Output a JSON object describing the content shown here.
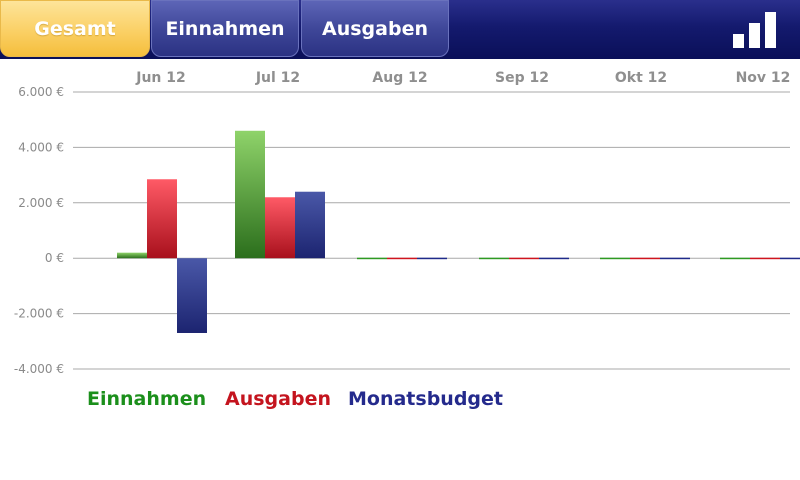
{
  "tabs": [
    {
      "label": "Gesamt",
      "active": true
    },
    {
      "label": "Einnahmen",
      "active": false
    },
    {
      "label": "Ausgaben",
      "active": false
    }
  ],
  "icons": {
    "chart_toggle": "bar-chart-icon"
  },
  "colors": {
    "einnahmen": "#2e9a22",
    "ausgaben": "#d0141e",
    "monatsbudget": "#1f2a8a",
    "active_tab": "#f9c94e",
    "header": "#141a6e"
  },
  "legend": [
    {
      "label": "Einnahmen",
      "color": "#1b8f1b"
    },
    {
      "label": "Ausgaben",
      "color": "#c4141e"
    },
    {
      "label": "Monatsbudget",
      "color": "#242a8c"
    }
  ],
  "chart_data": {
    "type": "bar",
    "categories": [
      "Jun 12",
      "Jul 12",
      "Aug 12",
      "Sep 12",
      "Okt 12",
      "Nov 12"
    ],
    "series": [
      {
        "name": "Einnahmen",
        "values": [
          200,
          4600,
          0,
          0,
          0,
          0
        ]
      },
      {
        "name": "Ausgaben",
        "values": [
          2850,
          2200,
          0,
          0,
          0,
          0
        ]
      },
      {
        "name": "Monatsbudget",
        "values": [
          -2700,
          2400,
          0,
          0,
          0,
          0
        ]
      }
    ],
    "ylim": [
      -4000,
      6000
    ],
    "yticks": [
      "6.000 €",
      "4.000 €",
      "2.000 €",
      "0 €",
      "-2.000 €",
      "-4.000 €"
    ],
    "ytick_values": [
      6000,
      4000,
      2000,
      0,
      -2000,
      -4000
    ],
    "grid": true,
    "legend_position": "bottom-left"
  }
}
